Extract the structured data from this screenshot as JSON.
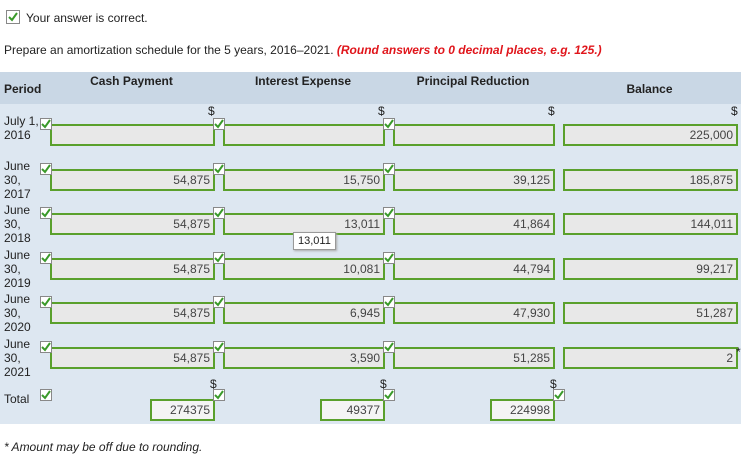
{
  "status": "Your answer is correct.",
  "instruction": "Prepare an amortization schedule for the 5 years, 2016–2021.",
  "instruction_note": "(Round answers to 0 decimal places, e.g. 125.)",
  "table": {
    "headers": [
      "Period",
      "Cash Payment",
      "Interest Expense",
      "Principal Reduction",
      "Balance"
    ],
    "currency_symbol": "$",
    "rows": [
      {
        "period": "July 1, 2016",
        "cash": null,
        "interest": null,
        "principal": null,
        "balance": "225,000"
      },
      {
        "period": "June 30, 2017",
        "cash": "54,875",
        "interest": "15,750",
        "principal": "39,125",
        "balance": "185,875"
      },
      {
        "period": "June 30, 2018",
        "cash": "54,875",
        "interest": "13,011",
        "principal": "41,864",
        "balance": "144,011"
      },
      {
        "period": "June 30, 2019",
        "cash": "54,875",
        "interest": "10,081",
        "principal": "44,794",
        "balance": "99,217"
      },
      {
        "period": "June 30, 2020",
        "cash": "54,875",
        "interest": "6,945",
        "principal": "47,930",
        "balance": "51,287"
      },
      {
        "period": "June 30, 2021",
        "cash": "54,875",
        "interest": "3,590",
        "principal": "51,285",
        "balance": "2",
        "note": "*"
      }
    ],
    "total": {
      "period": "Total",
      "cash": "274375",
      "interest": "49377",
      "principal": "224998"
    }
  },
  "tooltip": "13,011",
  "footnote": "* Amount may be off due to rounding."
}
